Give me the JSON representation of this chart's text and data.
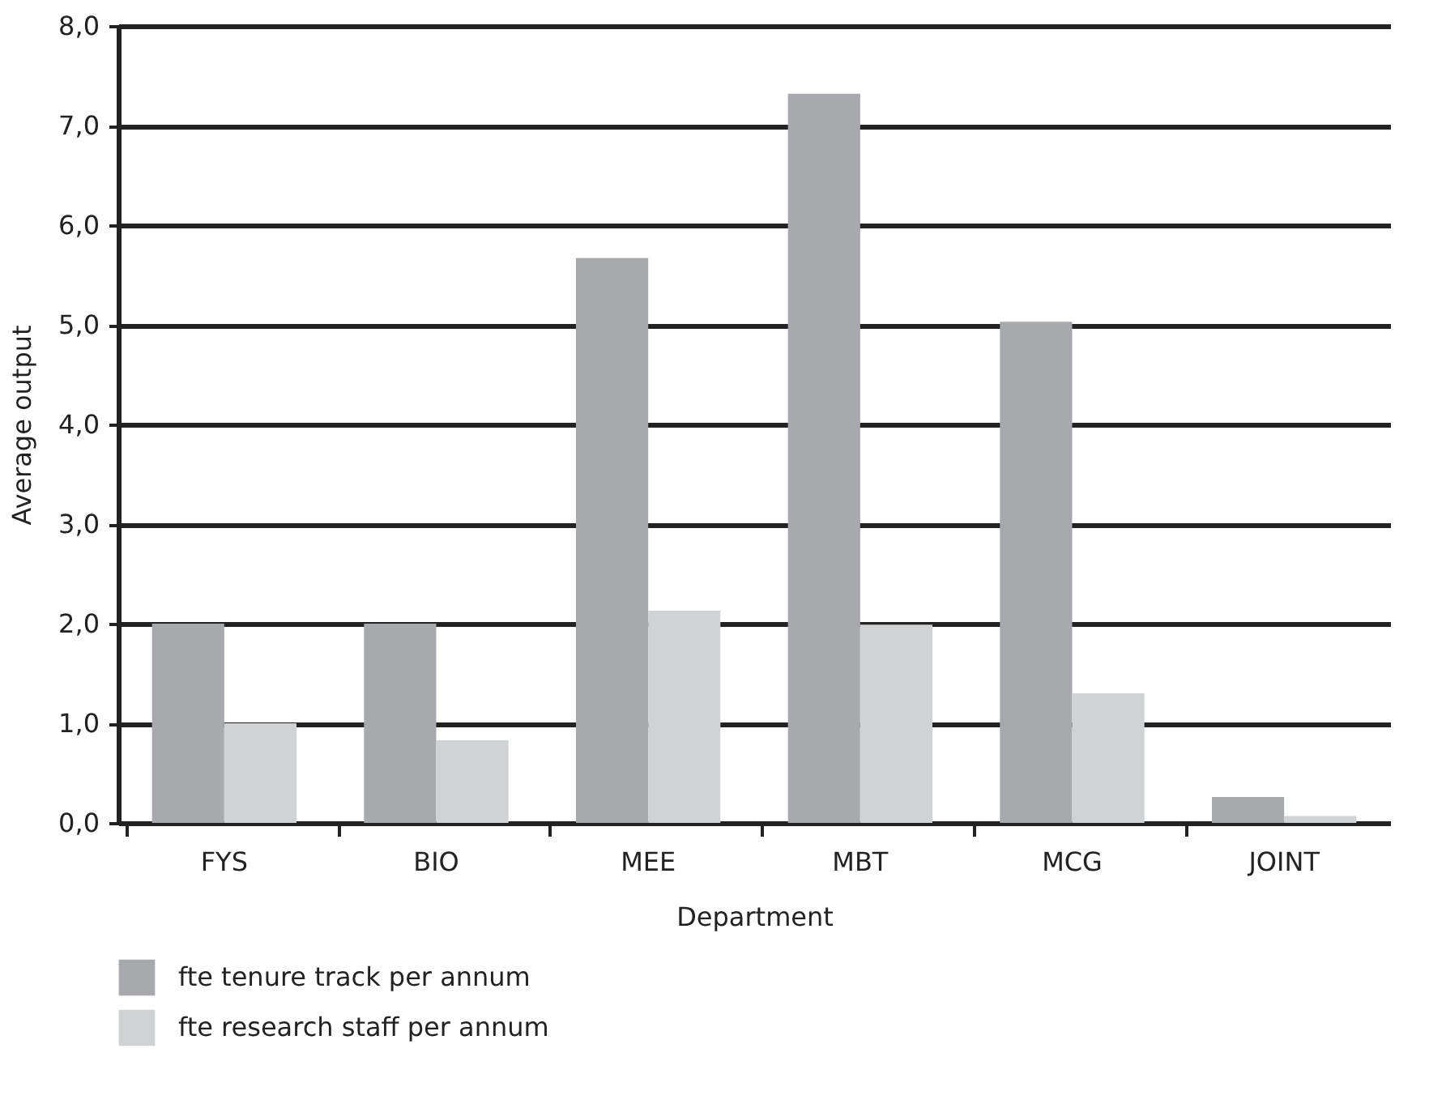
{
  "chart_data": {
    "type": "bar",
    "xlabel": "Department",
    "ylabel": "Average output",
    "categories": [
      "FYS",
      "BIO",
      "MEE",
      "MBT",
      "MCG",
      "JOINT"
    ],
    "series": [
      {
        "name": "fte tenure track per annum",
        "color": "#a8a9ac",
        "values": [
          2.0,
          2.0,
          5.67,
          7.32,
          5.03,
          0.26
        ]
      },
      {
        "name": "fte research staff per annum",
        "color": "#d1d2d4",
        "values": [
          1.0,
          0.83,
          2.13,
          1.99,
          1.3,
          0.07
        ]
      }
    ],
    "ylim": [
      0,
      8
    ],
    "yticks": [
      {
        "value": 0,
        "label": "0,0"
      },
      {
        "value": 1,
        "label": "1,0"
      },
      {
        "value": 2,
        "label": "2,0"
      },
      {
        "value": 3,
        "label": "3,0"
      },
      {
        "value": 4,
        "label": "4,0"
      },
      {
        "value": 5,
        "label": "5,0"
      },
      {
        "value": 6,
        "label": "6,0"
      },
      {
        "value": 7,
        "label": "7,0"
      },
      {
        "value": 8,
        "label": "8,0"
      }
    ],
    "grid": "y",
    "legend": "bottom left"
  }
}
